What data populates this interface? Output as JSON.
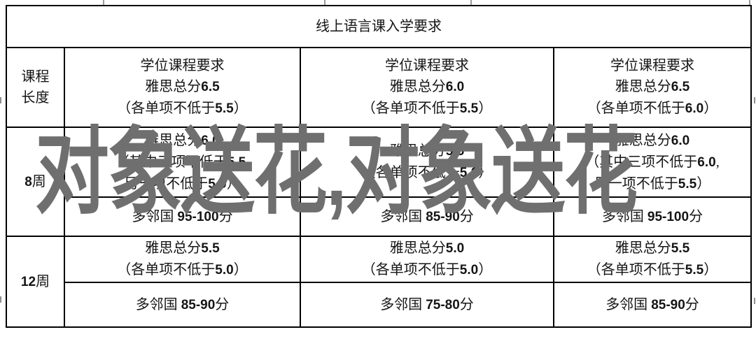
{
  "colors": {
    "border": "#000000",
    "text": "#151515",
    "watermark": "#6f6f6f",
    "background": "#ffffff"
  },
  "watermark": {
    "text": "对象送花,对象送花"
  },
  "table": {
    "title": "线上语言课入学要求",
    "corner_header_lines": [
      "课程",
      "长度"
    ],
    "column_headers": [
      {
        "lines": [
          "学位课程要求",
          "雅思总分6.5",
          "（各单项不低于5.5）"
        ]
      },
      {
        "lines": [
          "学位课程要求",
          "雅思总分6.0",
          "（各单项不低于5.5）"
        ]
      },
      {
        "lines": [
          "学位课程要求",
          "雅思总分6.5",
          "（各单项不低于6.0）"
        ]
      }
    ],
    "rows": [
      {
        "duration": "8周",
        "ielts": [
          {
            "lines": [
              "雅思总分6.0",
              "（其中三项不低于5.5,",
              "另一项不低于5.0）"
            ]
          },
          {
            "lines": [
              "雅思总分5.5",
              "（各单项不低于5.0）"
            ]
          },
          {
            "lines": [
              "雅思总分6.0",
              "（其中三项不低于6.0,",
              "另一项不低于5.5）"
            ]
          }
        ],
        "duolingo": [
          "多邻国 95-100分",
          "多邻国 85-90分",
          "多邻国 95-100分"
        ]
      },
      {
        "duration": "12周",
        "ielts": [
          {
            "lines": [
              "雅思总分5.5",
              "（各单项不低于5.0）"
            ]
          },
          {
            "lines": [
              "雅思总分5.0",
              "（各单项不低于5.0）"
            ]
          },
          {
            "lines": [
              "雅思总分5.5",
              "（各单项不低于5.5）"
            ]
          }
        ],
        "duolingo": [
          "多邻国 85-90分",
          "多邻国 75-80分",
          "多邻国 85-90分"
        ]
      }
    ]
  }
}
